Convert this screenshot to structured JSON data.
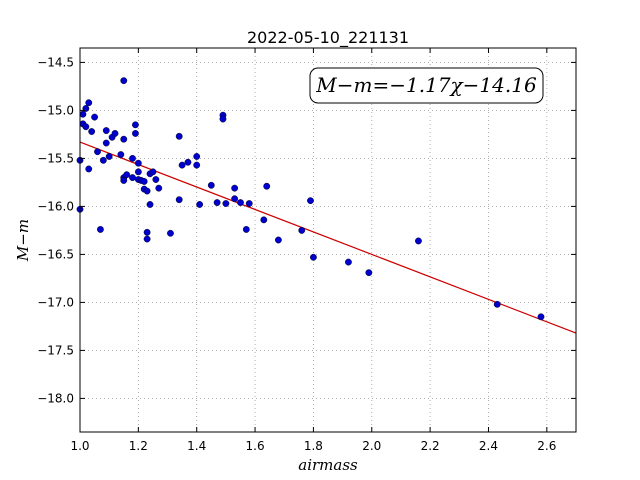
{
  "chart_data": {
    "type": "scatter",
    "title": "2022-05-10_221131",
    "xlabel": "airmass",
    "ylabel": "M−m",
    "annotation": "M−m=−1.17χ−14.16",
    "xlim": [
      1.0,
      2.7
    ],
    "ylim": [
      -18.35,
      -14.35
    ],
    "y_inverted": true,
    "grid": true,
    "xticks": [
      1.0,
      1.2,
      1.4,
      1.6,
      1.8,
      2.0,
      2.2,
      2.4,
      2.6
    ],
    "xtick_labels": [
      "1.0",
      "1.2",
      "1.4",
      "1.6",
      "1.8",
      "2.0",
      "2.2",
      "2.4",
      "2.6"
    ],
    "yticks": [
      -14.5,
      -15.0,
      -15.5,
      -16.0,
      -16.5,
      -17.0,
      -17.5,
      -18.0
    ],
    "ytick_labels": [
      "−14.5",
      "−15.0",
      "−15.5",
      "−16.0",
      "−16.5",
      "−17.0",
      "−17.5",
      "−18.0"
    ],
    "colors": {
      "points": "#0000cc",
      "fit": "#cc0000",
      "grid": "#999999"
    },
    "fit": {
      "slope": -1.17,
      "intercept": -14.16
    },
    "points": [
      [
        1.0,
        -15.52
      ],
      [
        1.0,
        -16.03
      ],
      [
        1.01,
        -15.14
      ],
      [
        1.01,
        -15.04
      ],
      [
        1.02,
        -15.17
      ],
      [
        1.02,
        -14.98
      ],
      [
        1.03,
        -14.92
      ],
      [
        1.03,
        -15.61
      ],
      [
        1.04,
        -15.22
      ],
      [
        1.05,
        -15.07
      ],
      [
        1.06,
        -15.43
      ],
      [
        1.07,
        -16.24
      ],
      [
        1.08,
        -15.52
      ],
      [
        1.09,
        -15.34
      ],
      [
        1.09,
        -15.21
      ],
      [
        1.1,
        -15.48
      ],
      [
        1.11,
        -15.28
      ],
      [
        1.12,
        -15.24
      ],
      [
        1.14,
        -15.46
      ],
      [
        1.15,
        -15.3
      ],
      [
        1.15,
        -14.69
      ],
      [
        1.15,
        -15.7
      ],
      [
        1.15,
        -15.73
      ],
      [
        1.16,
        -15.67
      ],
      [
        1.18,
        -15.7
      ],
      [
        1.18,
        -15.5
      ],
      [
        1.19,
        -15.24
      ],
      [
        1.19,
        -15.15
      ],
      [
        1.2,
        -15.55
      ],
      [
        1.2,
        -15.72
      ],
      [
        1.2,
        -15.64
      ],
      [
        1.21,
        -15.73
      ],
      [
        1.22,
        -15.74
      ],
      [
        1.22,
        -15.82
      ],
      [
        1.23,
        -15.84
      ],
      [
        1.23,
        -16.27
      ],
      [
        1.23,
        -16.34
      ],
      [
        1.24,
        -15.66
      ],
      [
        1.24,
        -15.98
      ],
      [
        1.25,
        -15.64
      ],
      [
        1.26,
        -15.72
      ],
      [
        1.27,
        -15.81
      ],
      [
        1.31,
        -16.28
      ],
      [
        1.34,
        -15.27
      ],
      [
        1.34,
        -15.93
      ],
      [
        1.35,
        -15.57
      ],
      [
        1.37,
        -15.54
      ],
      [
        1.4,
        -15.48
      ],
      [
        1.4,
        -15.57
      ],
      [
        1.41,
        -15.98
      ],
      [
        1.45,
        -15.78
      ],
      [
        1.47,
        -15.96
      ],
      [
        1.49,
        -15.05
      ],
      [
        1.49,
        -15.09
      ],
      [
        1.5,
        -15.97
      ],
      [
        1.53,
        -15.81
      ],
      [
        1.53,
        -15.92
      ],
      [
        1.55,
        -15.96
      ],
      [
        1.57,
        -16.24
      ],
      [
        1.58,
        -15.97
      ],
      [
        1.63,
        -16.14
      ],
      [
        1.64,
        -15.79
      ],
      [
        1.68,
        -16.35
      ],
      [
        1.76,
        -16.25
      ],
      [
        1.79,
        -15.94
      ],
      [
        1.8,
        -16.53
      ],
      [
        1.92,
        -16.58
      ],
      [
        1.99,
        -16.69
      ],
      [
        2.16,
        -16.36
      ],
      [
        2.43,
        -17.02
      ],
      [
        2.58,
        -17.15
      ]
    ]
  }
}
